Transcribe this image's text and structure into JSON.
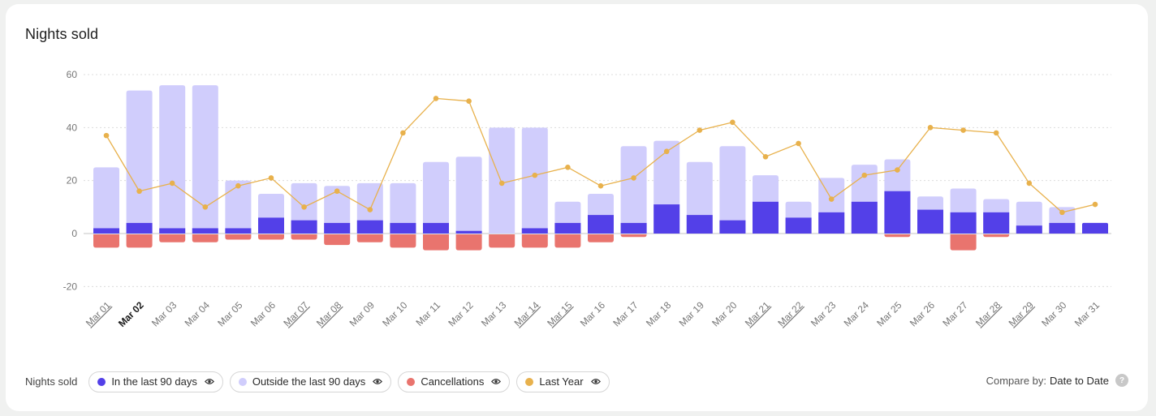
{
  "card": {
    "title": "Nights sold"
  },
  "legend": {
    "label": "Nights sold",
    "items": [
      {
        "label": "In the last 90 days",
        "color": "#5340e8",
        "icon": "eye-icon"
      },
      {
        "label": "Outside the last 90 days",
        "color": "#d0cdfc",
        "icon": "eye-icon"
      },
      {
        "label": "Cancellations",
        "color": "#e9746e",
        "icon": "eye-icon"
      },
      {
        "label": "Last Year",
        "color": "#e8b14c",
        "icon": "eye-icon"
      }
    ]
  },
  "compare": {
    "label": "Compare by:",
    "value": "Date to Date",
    "help_icon": "question-icon",
    "help_glyph": "?"
  },
  "chart_data": {
    "type": "bar",
    "title": "Nights sold",
    "xlabel": "",
    "ylabel": "",
    "ylim": [
      -20,
      60
    ],
    "yticks": [
      60,
      40,
      20,
      0,
      -20
    ],
    "grid": true,
    "legend_position": "bottom-left",
    "categories": [
      "Mar 01",
      "Mar 02",
      "Mar 03",
      "Mar 04",
      "Mar 05",
      "Mar 06",
      "Mar 07",
      "Mar 08",
      "Mar 09",
      "Mar 10",
      "Mar 11",
      "Mar 12",
      "Mar 13",
      "Mar 14",
      "Mar 15",
      "Mar 16",
      "Mar 17",
      "Mar 18",
      "Mar 19",
      "Mar 20",
      "Mar 21",
      "Mar 22",
      "Mar 23",
      "Mar 24",
      "Mar 25",
      "Mar 26",
      "Mar 27",
      "Mar 28",
      "Mar 29",
      "Mar 30",
      "Mar 31"
    ],
    "highlighted_category": "Mar 02",
    "underlined_categories": [
      "Mar 01",
      "Mar 07",
      "Mar 08",
      "Mar 14",
      "Mar 15",
      "Mar 21",
      "Mar 22",
      "Mar 28",
      "Mar 29"
    ],
    "series": [
      {
        "name": "In the last 90 days",
        "kind": "stacked-bar",
        "color": "#5340e8",
        "values": [
          2,
          4,
          2,
          2,
          2,
          6,
          5,
          4,
          5,
          4,
          4,
          1,
          0,
          2,
          4,
          7,
          4,
          11,
          7,
          5,
          12,
          6,
          8,
          12,
          16,
          9,
          8,
          8,
          3,
          4,
          4
        ]
      },
      {
        "name": "Outside the last 90 days",
        "kind": "stacked-bar",
        "color": "#d0cdfc",
        "values": [
          23,
          50,
          54,
          54,
          18,
          9,
          14,
          14,
          14,
          15,
          23,
          28,
          40,
          38,
          8,
          8,
          29,
          24,
          20,
          28,
          10,
          6,
          13,
          14,
          12,
          5,
          9,
          5,
          9,
          6,
          0
        ]
      },
      {
        "name": "Cancellations",
        "kind": "negative-bar",
        "color": "#e9746e",
        "values": [
          -5,
          -5,
          -3,
          -3,
          -2,
          -2,
          -2,
          -4,
          -3,
          -5,
          -6,
          -6,
          -5,
          -5,
          -5,
          -3,
          -1,
          0,
          0,
          0,
          0,
          0,
          0,
          0,
          -1,
          0,
          -6,
          -1,
          0,
          0,
          0
        ]
      },
      {
        "name": "Last Year",
        "kind": "line",
        "color": "#e8b14c",
        "values": [
          37,
          16,
          19,
          10,
          18,
          21,
          10,
          16,
          9,
          38,
          51,
          50,
          19,
          22,
          25,
          18,
          21,
          31,
          39,
          42,
          29,
          34,
          13,
          22,
          24,
          40,
          39,
          38,
          19,
          8,
          11
        ]
      }
    ]
  }
}
